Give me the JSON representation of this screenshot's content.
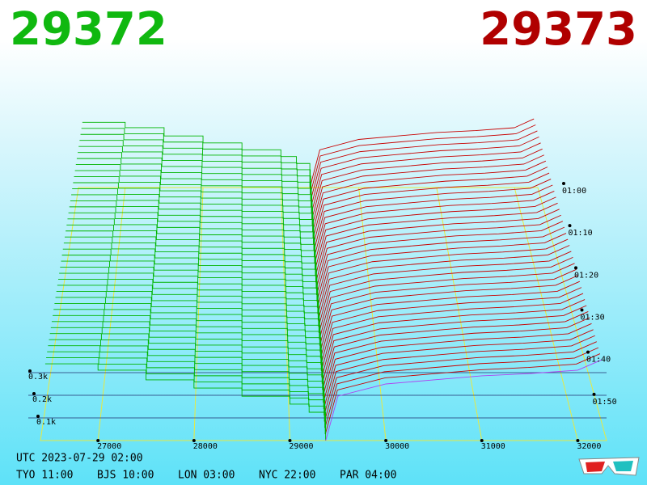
{
  "chart_data": {
    "type": "depth3d",
    "bid": 29372,
    "ask": 29373,
    "series": [
      {
        "color": "#00b400",
        "x": [
          26450,
          27000,
          27500,
          28000,
          28500,
          29000,
          29200,
          29372
        ],
        "values": [
          339,
          311,
          268,
          232,
          196,
          161,
          125,
          0
        ]
      },
      {
        "color": "#c80000",
        "x": [
          29373,
          29500,
          30000,
          30500,
          31000,
          31500,
          32000,
          32250
        ],
        "values": [
          0,
          196,
          250,
          268,
          286,
          296,
          311,
          357
        ]
      }
    ],
    "xlim": [
      26400,
      32300
    ],
    "xticks": [
      27000,
      28000,
      29000,
      30000,
      31000,
      32000
    ],
    "zticks": [
      {
        "value": 300,
        "label": "0.3k"
      },
      {
        "value": 200,
        "label": "0.2k"
      },
      {
        "value": 100,
        "label": "0.1k"
      }
    ],
    "tlim": [
      120,
      60
    ],
    "tticks": [
      {
        "value": 60,
        "label": "01:00"
      },
      {
        "value": 70,
        "label": "01:10"
      },
      {
        "value": 80,
        "label": "01:20"
      },
      {
        "value": 90,
        "label": "01:30"
      },
      {
        "value": 100,
        "label": "01:40"
      },
      {
        "value": 110,
        "label": "01:50"
      }
    ],
    "timestamp": "UTC 2023-07-29 02:00",
    "clocks": [
      "TYO 11:00",
      "BJS 10:00",
      "LON 03:00",
      "NYC 22:00",
      "PAR 04:00"
    ]
  }
}
